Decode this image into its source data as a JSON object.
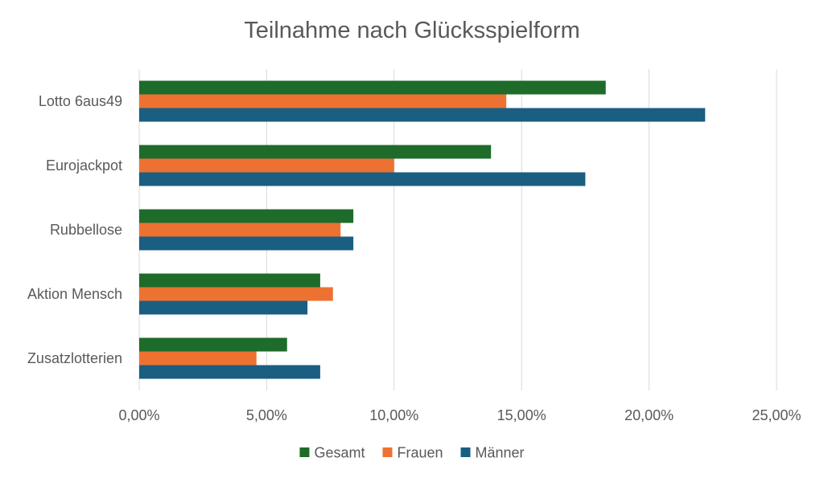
{
  "chart_data": {
    "type": "bar",
    "orientation": "horizontal",
    "title": "Teilnahme nach Glücksspielform",
    "xlabel": "",
    "ylabel": "",
    "categories": [
      "Lotto 6aus49",
      "Eurojackpot",
      "Rubbellose",
      "Aktion Mensch",
      "Zusatzlotterien"
    ],
    "series": [
      {
        "name": "Gesamt",
        "color": "#1e6b2a",
        "values": [
          18.3,
          13.8,
          8.4,
          7.1,
          5.8
        ]
      },
      {
        "name": "Frauen",
        "color": "#ed7232",
        "values": [
          14.4,
          10.0,
          7.9,
          7.6,
          4.6
        ]
      },
      {
        "name": "Männer",
        "color": "#1a5e82",
        "values": [
          22.2,
          17.5,
          8.4,
          6.6,
          7.1
        ]
      }
    ],
    "xlim": [
      0,
      25
    ],
    "xticks": [
      "0,00%",
      "5,00%",
      "10,00%",
      "15,00%",
      "20,00%",
      "25,00%"
    ],
    "grid": "vertical",
    "legend": "bottom"
  }
}
